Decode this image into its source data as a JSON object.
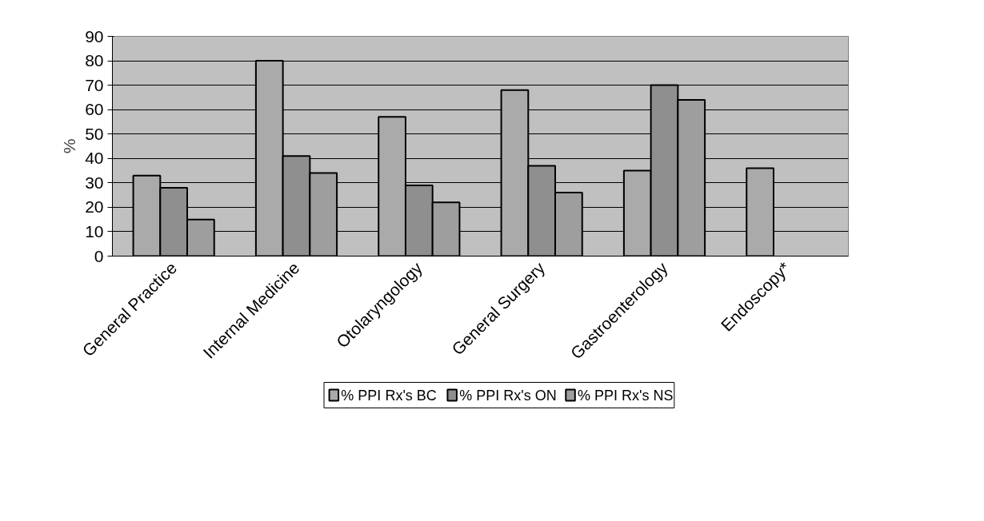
{
  "chart_data": {
    "type": "bar",
    "ylabel": "%",
    "categories": [
      "General Practice",
      "Internal Medicine",
      "Otolaryngology",
      "General Surgery",
      "Gastroenterology",
      "Endoscopy*"
    ],
    "series": [
      {
        "name": "% PPI Rx's BC",
        "color": "#aaaaaa",
        "values": [
          33,
          80,
          57,
          68,
          35,
          36
        ]
      },
      {
        "name": "% PPI Rx's ON",
        "color": "#8f8f8f",
        "values": [
          28,
          41,
          29,
          37,
          70,
          null
        ]
      },
      {
        "name": "% PPI Rx's NS",
        "color": "#9e9e9e",
        "values": [
          15,
          34,
          22,
          26,
          64,
          null
        ]
      }
    ],
    "ylim": [
      0,
      90
    ],
    "yticks": [
      0,
      10,
      20,
      30,
      40,
      50,
      60,
      70,
      80,
      90
    ],
    "grid": "y",
    "legend": "bottom"
  }
}
